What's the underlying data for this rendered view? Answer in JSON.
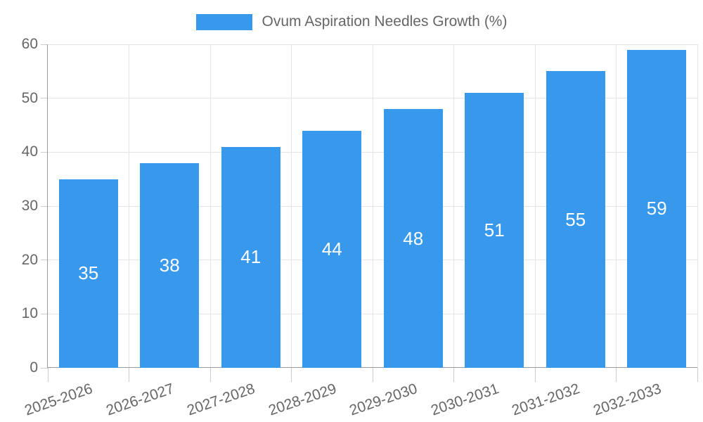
{
  "chart_data": {
    "type": "bar",
    "title": "",
    "legend_entries": [
      "Ovum Aspiration Needles Growth (%)"
    ],
    "legend_position": "top",
    "categories": [
      "2025-2026",
      "2026-2027",
      "2027-2028",
      "2028-2029",
      "2029-2030",
      "2030-2031",
      "2031-2032",
      "2032-2033"
    ],
    "values": [
      35,
      38,
      41,
      44,
      48,
      51,
      55,
      59
    ],
    "bar_value_labels_shown": true,
    "xlabel": "",
    "ylabel": "",
    "ylim": [
      0,
      60
    ],
    "yticks": [
      0,
      10,
      20,
      30,
      40,
      50,
      60
    ],
    "grid": true
  },
  "colors": {
    "bar": "#3899ec",
    "grid_line": "#e5e5e5",
    "axis_line": "#9a9a9a",
    "tick_mark": "#cccccc",
    "tick_text": "#666666",
    "legend_text": "#666666",
    "value_text": "#ffffff",
    "background": "#ffffff"
  }
}
